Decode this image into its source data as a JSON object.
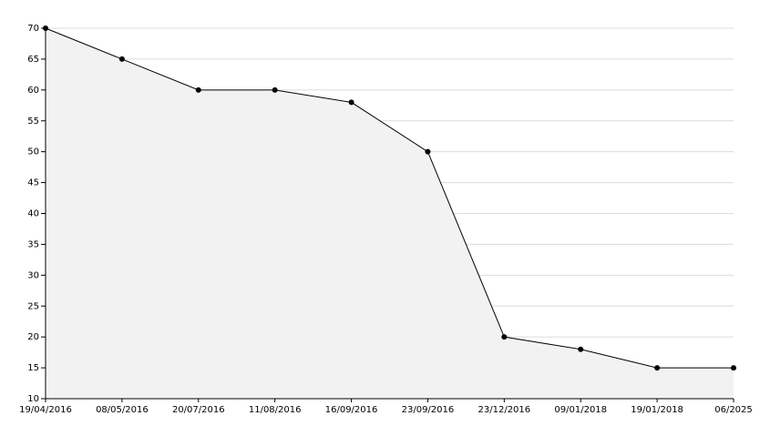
{
  "chart_data": {
    "type": "area",
    "categories": [
      "19/04/2016",
      "08/05/2016",
      "20/07/2016",
      "11/08/2016",
      "16/09/2016",
      "23/09/2016",
      "23/12/2016",
      "09/01/2018",
      "19/01/2018",
      "06/2025"
    ],
    "values": [
      70,
      65,
      60,
      60,
      58,
      50,
      20,
      18,
      15,
      15
    ],
    "color": "#000000",
    "fill": "#f2f2f2",
    "ylim": [
      10,
      70
    ],
    "yticks": [
      10,
      15,
      20,
      25,
      30,
      35,
      40,
      45,
      50,
      55,
      60,
      65,
      70
    ],
    "grid": true
  }
}
